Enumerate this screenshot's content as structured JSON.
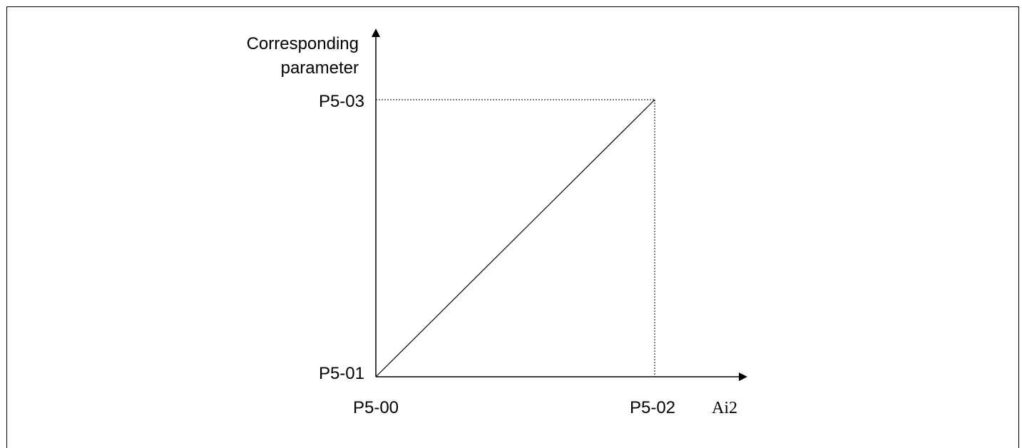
{
  "diagram": {
    "y_axis_label_line1": "Corresponding",
    "y_axis_label_line2": "parameter",
    "x_axis_label": "Ai2",
    "y_max_label": "P5-03",
    "y_min_label": "P5-01",
    "x_min_label": "P5-00",
    "x_max_label": "P5-02"
  }
}
